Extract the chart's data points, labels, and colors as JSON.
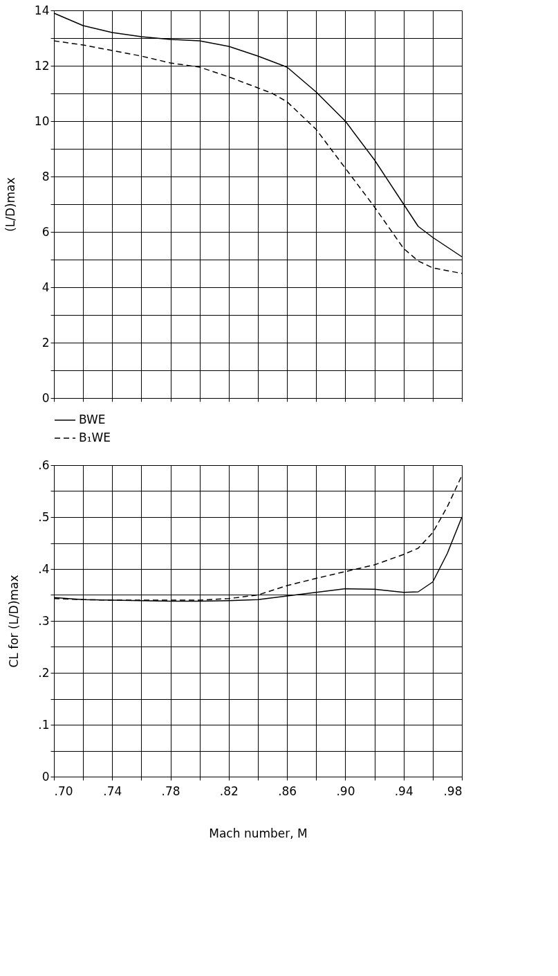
{
  "chart_data": [
    {
      "type": "line",
      "ylabel": "(L/D)max",
      "tick_labels": "y",
      "grid": true,
      "legend": "bottom",
      "x": [
        0.7,
        0.72,
        0.74,
        0.76,
        0.78,
        0.8,
        0.82,
        0.84,
        0.85,
        0.86,
        0.88,
        0.9,
        0.92,
        0.94,
        0.95,
        0.96,
        0.98
      ],
      "series": [
        {
          "name": "BWE",
          "color": "#000000",
          "line_style": "solid",
          "values": [
            13.9,
            13.45,
            13.2,
            13.05,
            12.95,
            12.9,
            12.7,
            12.35,
            12.15,
            11.95,
            11.05,
            10.0,
            8.6,
            7.0,
            6.2,
            5.8,
            5.1
          ]
        },
        {
          "name": "B₁WE",
          "color": "#000000",
          "line_style": "dashed",
          "values": [
            12.9,
            12.75,
            12.55,
            12.35,
            12.1,
            11.95,
            11.6,
            11.2,
            11.0,
            10.7,
            9.7,
            8.3,
            6.9,
            5.4,
            4.95,
            4.7,
            4.5
          ]
        }
      ],
      "xlim": [
        0.7,
        0.98
      ],
      "xticks": [
        {
          "value": 0.7,
          "label": null
        },
        {
          "value": 0.72,
          "label": null
        },
        {
          "value": 0.74,
          "label": null
        },
        {
          "value": 0.76,
          "label": null
        },
        {
          "value": 0.78,
          "label": null
        },
        {
          "value": 0.8,
          "label": null
        },
        {
          "value": 0.82,
          "label": null
        },
        {
          "value": 0.84,
          "label": null
        },
        {
          "value": 0.86,
          "label": null
        },
        {
          "value": 0.88,
          "label": null
        },
        {
          "value": 0.9,
          "label": null
        },
        {
          "value": 0.92,
          "label": null
        },
        {
          "value": 0.94,
          "label": null
        },
        {
          "value": 0.96,
          "label": null
        },
        {
          "value": 0.98,
          "label": null
        }
      ],
      "ylim": [
        0,
        14
      ],
      "yticks": [
        0,
        {
          "value": 1,
          "label": null
        },
        2,
        {
          "value": 3,
          "label": null
        },
        4,
        {
          "value": 5,
          "label": null
        },
        6,
        {
          "value": 7,
          "label": null
        },
        8,
        {
          "value": 9,
          "label": null
        },
        10,
        {
          "value": 11,
          "label": null
        },
        12,
        {
          "value": 13,
          "label": null
        },
        14
      ]
    },
    {
      "type": "line",
      "ylabel": "CL for (L/D)max",
      "xlabel": "Mach number, M",
      "grid": true,
      "x": [
        0.7,
        0.72,
        0.74,
        0.76,
        0.78,
        0.8,
        0.82,
        0.84,
        0.86,
        0.88,
        0.9,
        0.92,
        0.94,
        0.95,
        0.96,
        0.97,
        0.98
      ],
      "series": [
        {
          "color": "#000000",
          "line_style": "solid",
          "values": [
            0.345,
            0.341,
            0.34,
            0.339,
            0.338,
            0.338,
            0.339,
            0.341,
            0.348,
            0.355,
            0.362,
            0.361,
            0.355,
            0.356,
            0.375,
            0.43,
            0.5
          ]
        },
        {
          "color": "#000000",
          "line_style": "dashed",
          "values": [
            0.343,
            0.341,
            0.34,
            0.34,
            0.34,
            0.34,
            0.343,
            0.35,
            0.368,
            0.382,
            0.395,
            0.408,
            0.428,
            0.44,
            0.47,
            0.52,
            0.58
          ]
        }
      ],
      "xlim": [
        0.7,
        0.98
      ],
      "xticks": [
        {
          "value": 0.7,
          "label": ".70"
        },
        {
          "value": 0.72,
          "label": null
        },
        {
          "value": 0.74,
          "label": ".74"
        },
        {
          "value": 0.76,
          "label": null
        },
        {
          "value": 0.78,
          "label": ".78"
        },
        {
          "value": 0.8,
          "label": null
        },
        {
          "value": 0.82,
          "label": ".82"
        },
        {
          "value": 0.84,
          "label": null
        },
        {
          "value": 0.86,
          "label": ".86"
        },
        {
          "value": 0.88,
          "label": null
        },
        {
          "value": 0.9,
          "label": ".90"
        },
        {
          "value": 0.92,
          "label": null
        },
        {
          "value": 0.94,
          "label": ".94"
        },
        {
          "value": 0.96,
          "label": null
        },
        {
          "value": 0.98,
          "label": ".98"
        }
      ],
      "ylim": [
        0,
        0.6
      ],
      "yticks": [
        0,
        {
          "value": 0.05,
          "label": null
        },
        {
          "value": 0.1,
          "label": ".1"
        },
        {
          "value": 0.15,
          "label": null
        },
        {
          "value": 0.2,
          "label": ".2"
        },
        {
          "value": 0.25,
          "label": null
        },
        {
          "value": 0.3,
          "label": ".3"
        },
        {
          "value": 0.35,
          "label": null
        },
        {
          "value": 0.4,
          "label": ".4"
        },
        {
          "value": 0.45,
          "label": null
        },
        {
          "value": 0.5,
          "label": ".5"
        },
        {
          "value": 0.55,
          "label": null
        },
        {
          "value": 0.6,
          "label": ".6"
        }
      ]
    }
  ]
}
